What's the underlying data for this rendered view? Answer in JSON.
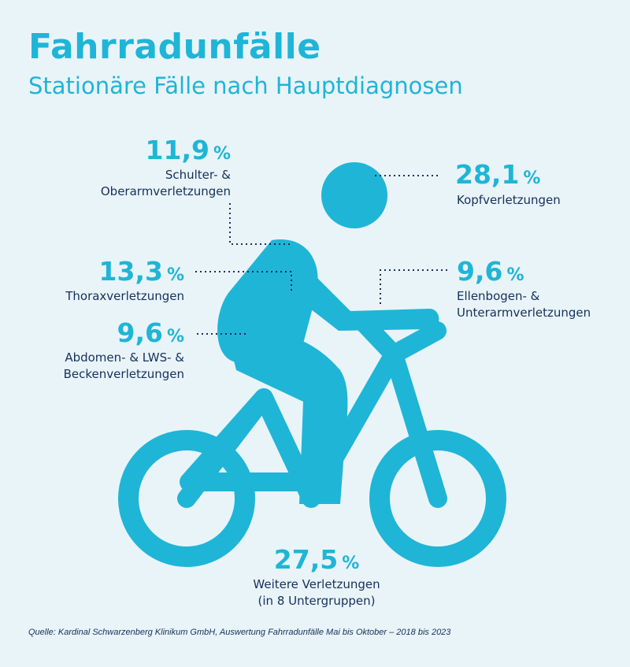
{
  "title": "Fahrradunfälle",
  "subtitle": "Stationäre Fälle nach Hauptdiagnosen",
  "source": "Quelle: Kardinal Schwarzenberg Klinikum GmbH, Auswertung Fahrradunfälle Mai bis Oktober – 2018 bis 2023",
  "colors": {
    "accent": "#1fb5d7",
    "text": "#16305a",
    "background": "#e9f4f9"
  },
  "chart_data": {
    "type": "infographic",
    "unit": "%",
    "items": [
      {
        "value": 28.1,
        "display": "28,1",
        "label": "Kopfverletzungen"
      },
      {
        "value": 11.9,
        "display": "11,9",
        "label": "Schulter- & Oberarmverletzungen"
      },
      {
        "value": 13.3,
        "display": "13,3",
        "label": "Thoraxverletzungen"
      },
      {
        "value": 9.6,
        "display": "9,6",
        "label": "Ellenbogen- & Unterarmverletzungen"
      },
      {
        "value": 9.6,
        "display": "9,6",
        "label": "Abdomen- & LWS- & Beckenverletzungen"
      },
      {
        "value": 27.5,
        "display": "27,5",
        "label": "Weitere Verletzungen (in 8 Untergruppen)"
      }
    ]
  },
  "labels": {
    "kopf": "Kopfverletzungen",
    "schulter_1": "Schulter- &",
    "schulter_2": "Oberarmverletzungen",
    "thorax": "Thoraxverletzungen",
    "ellenbogen_1": "Ellenbogen- &",
    "ellenbogen_2": "Unterarmverletzungen",
    "abdomen_1": "Abdomen- & LWS- &",
    "abdomen_2": "Beckenverletzungen",
    "weitere_1": "Weitere Verletzungen",
    "weitere_2": "(in 8 Untergruppen)"
  }
}
